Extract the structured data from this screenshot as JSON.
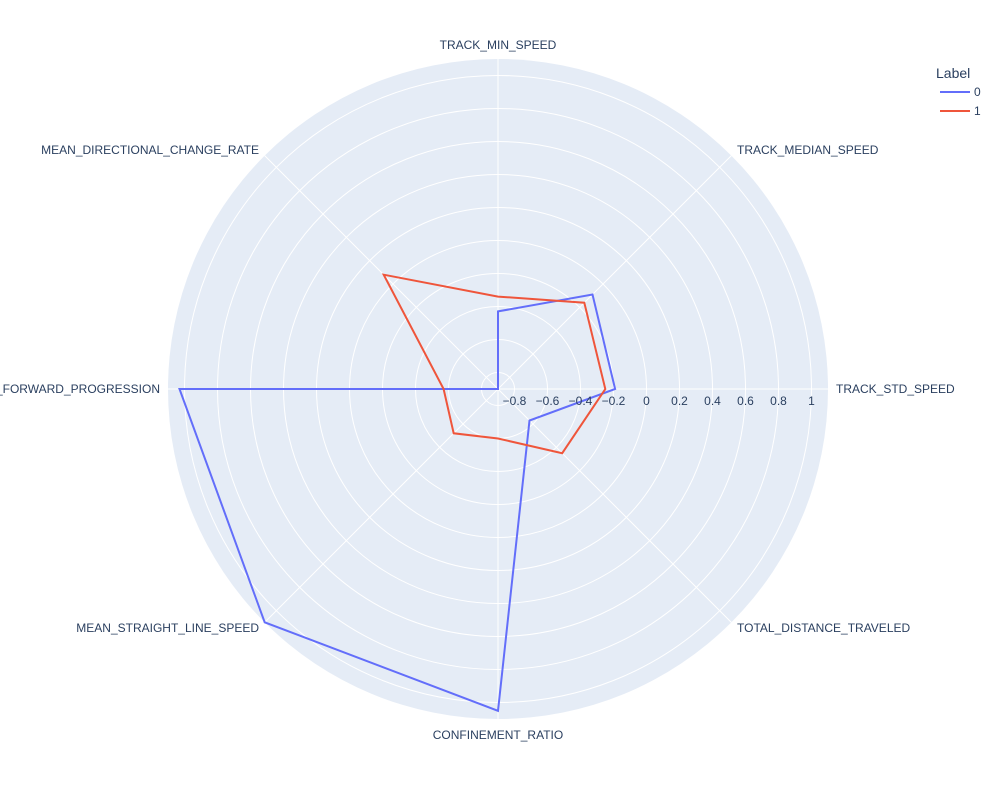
{
  "chart_data": {
    "type": "radar",
    "axes": [
      "TRACK_MIN_SPEED",
      "TRACK_MEDIAN_SPEED",
      "TRACK_STD_SPEED",
      "TOTAL_DISTANCE_TRAVELED",
      "CONFINEMENT_RATIO",
      "MEAN_STRAIGHT_LINE_SPEED",
      "_FORWARD_PROGRESSION",
      "MEAN_DIRECTIONAL_CHANGE_RATE"
    ],
    "radial_range": [
      -0.9,
      1.1
    ],
    "radial_ticks": [
      -0.8,
      -0.6,
      -0.4,
      -0.2,
      0,
      0.2,
      0.4,
      0.6,
      0.8,
      1
    ],
    "radial_tick_labels": [
      "−0.8",
      "−0.6",
      "−0.4",
      "−0.2",
      "0",
      "0.2",
      "0.4",
      "0.6",
      "0.8",
      "1"
    ],
    "legend": {
      "title": "Label",
      "placement": "top-right"
    },
    "series": [
      {
        "name": "0",
        "color": "#636efa",
        "values": [
          -0.43,
          -0.09,
          -0.19,
          -0.63,
          1.05,
          1.1,
          1.03,
          -0.9
        ]
      },
      {
        "name": "1",
        "color": "#ef553b",
        "values": [
          -0.34,
          -0.16,
          -0.25,
          -0.35,
          -0.6,
          -0.52,
          -0.57,
          0.08
        ]
      }
    ]
  }
}
